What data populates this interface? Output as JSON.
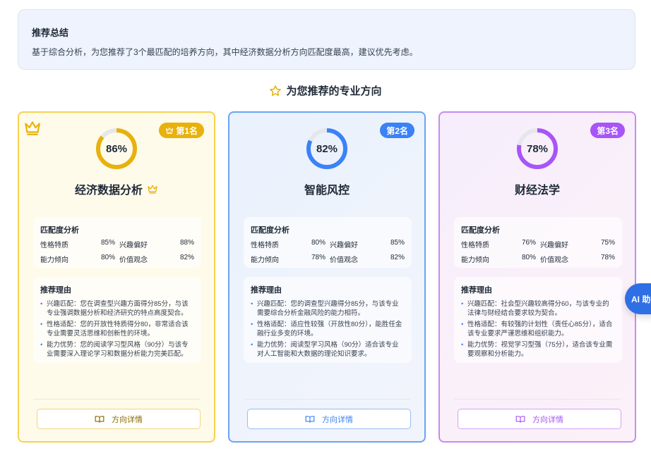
{
  "summary": {
    "title": "推荐总结",
    "text": "基于综合分析，为您推荐了3个最匹配的培养方向，其中经济数据分析方向匹配度最高，建议优先考虑。"
  },
  "heading": "为您推荐的专业方向",
  "match_title": "匹配度分析",
  "reasons_title": "推荐理由",
  "detail_label": "方向详情",
  "ai_button": "AI 助手",
  "cards": [
    {
      "rank": "第1名",
      "score": 86,
      "score_text": "86%",
      "name": "经济数据分析",
      "color": "#e8b10c",
      "top": true,
      "metrics": [
        [
          "性格特质",
          "85%"
        ],
        [
          "兴趣偏好",
          "88%"
        ],
        [
          "能力倾向",
          "80%"
        ],
        [
          "价值观念",
          "82%"
        ]
      ],
      "reasons": [
        "兴趣匹配：您在调查型兴趣方面得分85分，与该专业强调数据分析和经济研究的特点高度契合。",
        "性格适配：您的开放性特质得分80，非常适合该专业需要灵活思维和创新性的环境。",
        "能力优势：您的阅读学习型风格（90分）与该专业需要深入理论学习和数据分析能力完美匹配。"
      ]
    },
    {
      "rank": "第2名",
      "score": 82,
      "score_text": "82%",
      "name": "智能风控",
      "color": "#3b82f6",
      "top": false,
      "metrics": [
        [
          "性格特质",
          "80%"
        ],
        [
          "兴趣偏好",
          "85%"
        ],
        [
          "能力倾向",
          "78%"
        ],
        [
          "价值观念",
          "82%"
        ]
      ],
      "reasons": [
        "兴趣匹配：您的调查型兴趣得分85分，与该专业需要综合分析金融风险的能力相符。",
        "性格适配：适应性较强（开放性80分），能胜任金融行业多变的环境。",
        "能力优势：阅读型学习风格（90分）适合该专业对人工智能和大数据的理论知识要求。"
      ]
    },
    {
      "rank": "第3名",
      "score": 78,
      "score_text": "78%",
      "name": "财经法学",
      "color": "#a855f7",
      "top": false,
      "metrics": [
        [
          "性格特质",
          "76%"
        ],
        [
          "兴趣偏好",
          "75%"
        ],
        [
          "能力倾向",
          "80%"
        ],
        [
          "价值观念",
          "78%"
        ]
      ],
      "reasons": [
        "兴趣匹配：社会型兴趣较高得分60，与该专业的法律与财经结合要求较为契合。",
        "性格适配：有较强的计划性（责任心85分），适合该专业要求严谨思维和组织能力。",
        "能力优势：视觉学习型强（75分），适合该专业需要观察和分析能力。"
      ]
    }
  ]
}
